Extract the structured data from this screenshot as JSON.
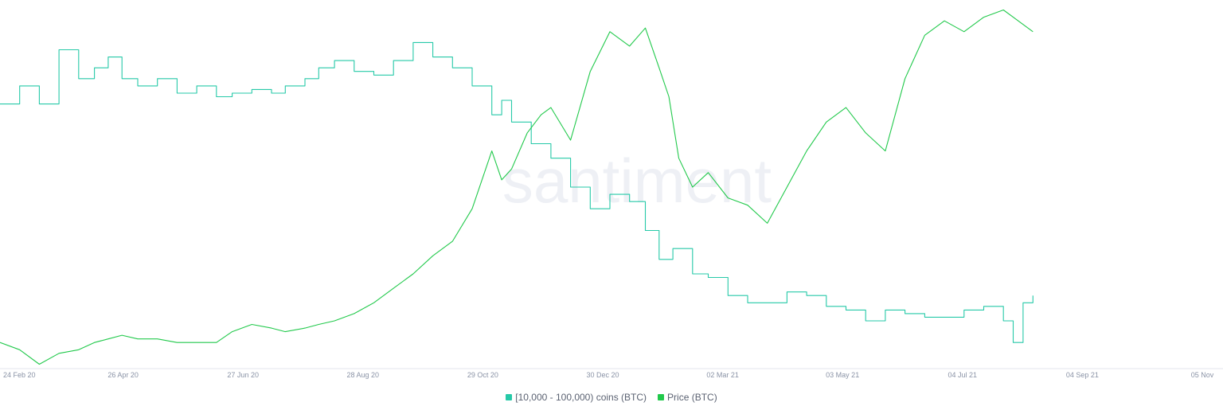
{
  "watermark": "santiment",
  "chart_data": {
    "type": "line",
    "x_ticks": [
      "24 Feb 20",
      "26 Apr 20",
      "27 Jun 20",
      "28 Aug 20",
      "29 Oct 20",
      "30 Dec 20",
      "02 Mar 21",
      "03 May 21",
      "04 Jul 21",
      "04 Sep 21",
      "05 Nov"
    ],
    "x_range": [
      "2020-02-24",
      "2021-11-05"
    ],
    "grid": false,
    "legend_position": "bottom-center",
    "series": [
      {
        "name": "[10,000 - 100,000) coins (BTC)",
        "color": "#26c9a8",
        "scale": "relative",
        "y_range": [
          0,
          100
        ],
        "values": [
          [
            0,
            73
          ],
          [
            10,
            78
          ],
          [
            20,
            73
          ],
          [
            30,
            88
          ],
          [
            40,
            80
          ],
          [
            48,
            83
          ],
          [
            55,
            86
          ],
          [
            62,
            80
          ],
          [
            70,
            78
          ],
          [
            80,
            80
          ],
          [
            90,
            76
          ],
          [
            100,
            78
          ],
          [
            110,
            75
          ],
          [
            118,
            76
          ],
          [
            128,
            77
          ],
          [
            138,
            76
          ],
          [
            145,
            78
          ],
          [
            155,
            80
          ],
          [
            162,
            83
          ],
          [
            170,
            85
          ],
          [
            180,
            82
          ],
          [
            190,
            81
          ],
          [
            200,
            85
          ],
          [
            210,
            90
          ],
          [
            220,
            86
          ],
          [
            230,
            83
          ],
          [
            240,
            78
          ],
          [
            250,
            70
          ],
          [
            255,
            74
          ],
          [
            260,
            68
          ],
          [
            270,
            62
          ],
          [
            280,
            58
          ],
          [
            290,
            50
          ],
          [
            300,
            44
          ],
          [
            310,
            48
          ],
          [
            320,
            46
          ],
          [
            328,
            38
          ],
          [
            335,
            30
          ],
          [
            342,
            33
          ],
          [
            352,
            26
          ],
          [
            360,
            25
          ],
          [
            370,
            20
          ],
          [
            380,
            18
          ],
          [
            390,
            18
          ],
          [
            400,
            21
          ],
          [
            410,
            20
          ],
          [
            420,
            17
          ],
          [
            430,
            16
          ],
          [
            440,
            13
          ],
          [
            450,
            16
          ],
          [
            460,
            15
          ],
          [
            470,
            14
          ],
          [
            480,
            14
          ],
          [
            490,
            16
          ],
          [
            500,
            17
          ],
          [
            510,
            13
          ],
          [
            515,
            7
          ],
          [
            520,
            18
          ],
          [
            525,
            20
          ]
        ]
      },
      {
        "name": "Price (BTC)",
        "color": "#21c94b",
        "scale": "relative",
        "y_range": [
          0,
          100
        ],
        "values": [
          [
            0,
            7
          ],
          [
            10,
            5
          ],
          [
            20,
            1
          ],
          [
            30,
            4
          ],
          [
            40,
            5
          ],
          [
            48,
            7
          ],
          [
            55,
            8
          ],
          [
            62,
            9
          ],
          [
            70,
            8
          ],
          [
            80,
            8
          ],
          [
            90,
            7
          ],
          [
            100,
            7
          ],
          [
            110,
            7
          ],
          [
            118,
            10
          ],
          [
            128,
            12
          ],
          [
            138,
            11
          ],
          [
            145,
            10
          ],
          [
            155,
            11
          ],
          [
            162,
            12
          ],
          [
            170,
            13
          ],
          [
            180,
            15
          ],
          [
            190,
            18
          ],
          [
            200,
            22
          ],
          [
            210,
            26
          ],
          [
            220,
            31
          ],
          [
            230,
            35
          ],
          [
            240,
            44
          ],
          [
            250,
            60
          ],
          [
            255,
            52
          ],
          [
            260,
            55
          ],
          [
            268,
            65
          ],
          [
            275,
            70
          ],
          [
            280,
            72
          ],
          [
            290,
            63
          ],
          [
            300,
            82
          ],
          [
            310,
            93
          ],
          [
            320,
            89
          ],
          [
            328,
            94
          ],
          [
            335,
            83
          ],
          [
            340,
            75
          ],
          [
            345,
            58
          ],
          [
            352,
            50
          ],
          [
            360,
            54
          ],
          [
            370,
            47
          ],
          [
            380,
            45
          ],
          [
            390,
            40
          ],
          [
            400,
            50
          ],
          [
            410,
            60
          ],
          [
            420,
            68
          ],
          [
            430,
            72
          ],
          [
            440,
            65
          ],
          [
            450,
            60
          ],
          [
            460,
            80
          ],
          [
            470,
            92
          ],
          [
            480,
            96
          ],
          [
            490,
            93
          ],
          [
            500,
            97
          ],
          [
            510,
            99
          ],
          [
            520,
            95
          ],
          [
            525,
            93
          ]
        ]
      }
    ]
  }
}
